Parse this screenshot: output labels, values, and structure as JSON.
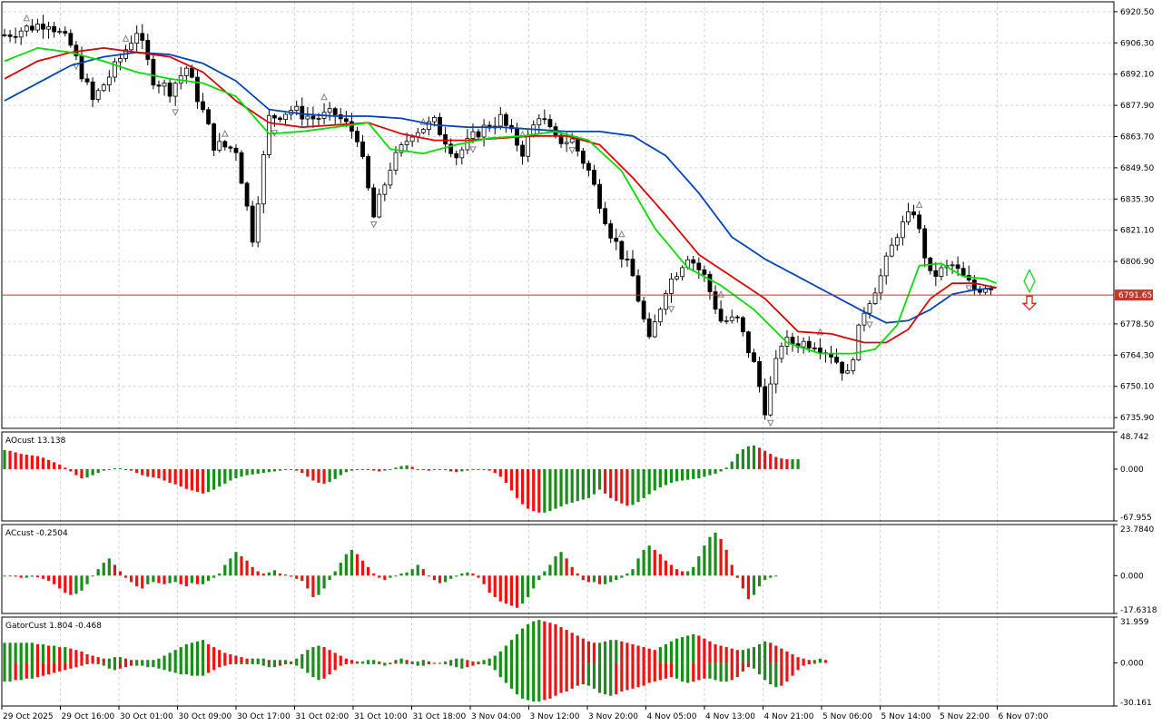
{
  "colors": {
    "background": "#ffffff",
    "grid": "#d3d3d3",
    "bull_candle": "#ffffff",
    "bear_candle": "#000000",
    "ma_green": "#00dd00",
    "ma_red": "#dd0000",
    "ma_blue": "#0044bb",
    "fractal": "#808080",
    "price_line": "#c0392b",
    "bar_up": "#1a8c1a",
    "bar_down": "#ee1111",
    "signal_buy": "#22cc22",
    "signal_sell": "#dd2222"
  },
  "panels": {
    "ao": {
      "label": "AOcust 13.138"
    },
    "ac": {
      "label": "ACcust -0.2504"
    },
    "gator": {
      "label": "GatorCust 1.804 -0.468"
    }
  },
  "chart_data": [
    {
      "type": "candlestick",
      "title": "",
      "current_price": "6791.65",
      "price_ticks": [
        "6920.50",
        "6906.30",
        "6892.10",
        "6877.90",
        "6863.70",
        "6849.50",
        "6835.30",
        "6821.10",
        "6806.90",
        "6791.65",
        "6778.50",
        "6764.30",
        "6750.10",
        "6735.90"
      ],
      "ylim": [
        6731,
        6925
      ],
      "time_labels": [
        "29 Oct 2025",
        "29 Oct 16:00",
        "30 Oct 01:00",
        "30 Oct 09:00",
        "30 Oct 17:00",
        "31 Oct 02:00",
        "31 Oct 10:00",
        "31 Oct 18:00",
        "3 Nov 04:00",
        "3 Nov 12:00",
        "3 Nov 20:00",
        "4 Nov 05:00",
        "4 Nov 13:00",
        "4 Nov 21:00",
        "5 Nov 06:00",
        "5 Nov 14:00",
        "5 Nov 22:00",
        "6 Nov 07:00"
      ],
      "anchors": [
        [
          0,
          6910
        ],
        [
          8,
          6916
        ],
        [
          12,
          6905
        ],
        [
          16,
          6880
        ],
        [
          20,
          6895
        ],
        [
          24,
          6912
        ],
        [
          27,
          6890
        ],
        [
          30,
          6885
        ],
        [
          33,
          6895
        ],
        [
          36,
          6875
        ],
        [
          38,
          6860
        ],
        [
          42,
          6858
        ],
        [
          45,
          6818
        ],
        [
          48,
          6872
        ],
        [
          52,
          6876
        ],
        [
          56,
          6872
        ],
        [
          60,
          6874
        ],
        [
          64,
          6864
        ],
        [
          67,
          6827
        ],
        [
          70,
          6850
        ],
        [
          74,
          6866
        ],
        [
          78,
          6870
        ],
        [
          82,
          6855
        ],
        [
          86,
          6866
        ],
        [
          90,
          6872
        ],
        [
          94,
          6857
        ],
        [
          97,
          6874
        ],
        [
          100,
          6862
        ],
        [
          103,
          6862
        ],
        [
          106,
          6848
        ],
        [
          110,
          6820
        ],
        [
          114,
          6800
        ],
        [
          117,
          6770
        ],
        [
          120,
          6795
        ],
        [
          124,
          6810
        ],
        [
          127,
          6800
        ],
        [
          130,
          6780
        ],
        [
          133,
          6780
        ],
        [
          136,
          6760
        ],
        [
          138,
          6740
        ],
        [
          141,
          6770
        ],
        [
          144,
          6770
        ],
        [
          147,
          6770
        ],
        [
          150,
          6765
        ],
        [
          153,
          6755
        ],
        [
          156,
          6785
        ],
        [
          159,
          6800
        ],
        [
          162,
          6820
        ],
        [
          165,
          6830
        ],
        [
          168,
          6800
        ],
        [
          172,
          6805
        ],
        [
          176,
          6794
        ],
        [
          178,
          6796
        ]
      ],
      "ma_green": [
        [
          0,
          6898
        ],
        [
          6,
          6904
        ],
        [
          12,
          6902
        ],
        [
          18,
          6898
        ],
        [
          24,
          6893
        ],
        [
          30,
          6890
        ],
        [
          36,
          6888
        ],
        [
          42,
          6882
        ],
        [
          48,
          6865
        ],
        [
          54,
          6866
        ],
        [
          60,
          6868
        ],
        [
          66,
          6870
        ],
        [
          70,
          6858
        ],
        [
          76,
          6856
        ],
        [
          82,
          6860
        ],
        [
          88,
          6863
        ],
        [
          94,
          6864
        ],
        [
          100,
          6866
        ],
        [
          106,
          6862
        ],
        [
          112,
          6848
        ],
        [
          118,
          6822
        ],
        [
          124,
          6804
        ],
        [
          130,
          6796
        ],
        [
          136,
          6785
        ],
        [
          142,
          6770
        ],
        [
          148,
          6765
        ],
        [
          154,
          6765
        ],
        [
          158,
          6767
        ],
        [
          162,
          6778
        ],
        [
          166,
          6805
        ],
        [
          170,
          6806
        ],
        [
          174,
          6800
        ],
        [
          178,
          6799
        ],
        [
          180,
          6797
        ]
      ],
      "ma_red": [
        [
          0,
          6890
        ],
        [
          6,
          6898
        ],
        [
          12,
          6902
        ],
        [
          18,
          6904
        ],
        [
          24,
          6902
        ],
        [
          30,
          6900
        ],
        [
          36,
          6893
        ],
        [
          42,
          6880
        ],
        [
          48,
          6870
        ],
        [
          54,
          6868
        ],
        [
          60,
          6869
        ],
        [
          66,
          6870
        ],
        [
          72,
          6865
        ],
        [
          78,
          6862
        ],
        [
          84,
          6862
        ],
        [
          90,
          6863
        ],
        [
          96,
          6864
        ],
        [
          102,
          6864
        ],
        [
          108,
          6860
        ],
        [
          114,
          6845
        ],
        [
          120,
          6828
        ],
        [
          126,
          6810
        ],
        [
          132,
          6800
        ],
        [
          138,
          6790
        ],
        [
          144,
          6775
        ],
        [
          150,
          6774
        ],
        [
          156,
          6770
        ],
        [
          160,
          6770
        ],
        [
          164,
          6776
        ],
        [
          168,
          6790
        ],
        [
          172,
          6797
        ],
        [
          176,
          6797
        ],
        [
          180,
          6795
        ]
      ],
      "ma_blue": [
        [
          0,
          6880
        ],
        [
          6,
          6888
        ],
        [
          12,
          6896
        ],
        [
          18,
          6900
        ],
        [
          24,
          6902
        ],
        [
          30,
          6901
        ],
        [
          36,
          6897
        ],
        [
          42,
          6889
        ],
        [
          48,
          6876
        ],
        [
          54,
          6874
        ],
        [
          60,
          6873
        ],
        [
          66,
          6873
        ],
        [
          72,
          6872
        ],
        [
          78,
          6869
        ],
        [
          84,
          6868
        ],
        [
          90,
          6868
        ],
        [
          96,
          6867
        ],
        [
          102,
          6866
        ],
        [
          108,
          6866
        ],
        [
          114,
          6864
        ],
        [
          120,
          6855
        ],
        [
          126,
          6838
        ],
        [
          132,
          6818
        ],
        [
          138,
          6808
        ],
        [
          144,
          6800
        ],
        [
          150,
          6792
        ],
        [
          156,
          6784
        ],
        [
          160,
          6779
        ],
        [
          164,
          6780
        ],
        [
          168,
          6785
        ],
        [
          172,
          6792
        ],
        [
          176,
          6794
        ],
        [
          180,
          6795
        ]
      ]
    },
    {
      "type": "bar",
      "title": "AOcust 13.138",
      "ticks": [
        "48.742",
        "0.000",
        "-67.955"
      ],
      "ylim": [
        -67.955,
        48.742
      ],
      "values": [
        25,
        24,
        22,
        20,
        19,
        18,
        17,
        15,
        12,
        9,
        6,
        2,
        -3,
        -8,
        -12,
        -11,
        -8,
        -5,
        -2,
        0,
        1,
        1,
        0,
        -2,
        -5,
        -8,
        -10,
        -11,
        -12,
        -15,
        -18,
        -20,
        -23,
        -26,
        -28,
        -30,
        -32,
        -30,
        -27,
        -23,
        -19,
        -15,
        -12,
        -10,
        -8,
        -7,
        -6,
        -5,
        -4,
        -3,
        -2,
        -1,
        0,
        -2,
        -5,
        -10,
        -15,
        -18,
        -19,
        -17,
        -13,
        -8,
        -4,
        -2,
        -1,
        0,
        -1,
        -2,
        -3,
        -2,
        0,
        2,
        4,
        5,
        3,
        0,
        -1,
        -2,
        -1,
        0,
        -1,
        -3,
        -4,
        -3,
        -2,
        -1,
        0,
        -1,
        -2,
        -5,
        -10,
        -18,
        -28,
        -38,
        -46,
        -52,
        -55,
        -57,
        -57,
        -55,
        -52,
        -49,
        -46,
        -44,
        -42,
        -40,
        -38,
        -33,
        -27,
        -32,
        -38,
        -42,
        -45,
        -48,
        -47,
        -43,
        -38,
        -33,
        -28,
        -24,
        -21,
        -18,
        -16,
        -15,
        -14,
        -13,
        -12,
        -10,
        -8,
        -6,
        -3,
        2,
        10,
        20,
        26,
        30,
        31,
        28,
        24,
        20,
        16,
        14,
        13,
        13,
        13
      ]
    },
    {
      "type": "bar",
      "title": "ACcust -0.2504",
      "ticks": [
        "23.7840",
        "0.000",
        "-17.6318"
      ],
      "ylim": [
        -17.6318,
        23.784
      ],
      "values": [
        0,
        0,
        -0.5,
        -1,
        -1,
        -0.5,
        -0.8,
        -1.5,
        -2.5,
        -4,
        -6,
        -8,
        -9,
        -8.5,
        -7,
        -4,
        0,
        3,
        6,
        8,
        5,
        2,
        -1,
        -3,
        -5,
        -6,
        -4,
        -3,
        -3.5,
        -4,
        -3.5,
        -3,
        -4,
        -5,
        -3.5,
        -4,
        -4,
        -2.5,
        -1,
        1,
        5,
        8,
        11,
        9,
        7,
        4,
        2,
        1,
        1.5,
        2.5,
        1,
        0.5,
        -0.5,
        -1.5,
        -2.5,
        -6,
        -10,
        -9,
        -6,
        -2,
        2,
        6,
        10,
        12,
        10,
        7,
        4,
        1,
        -1,
        -2,
        -1,
        0,
        1,
        1.5,
        3,
        5,
        3,
        0,
        -2,
        -3.5,
        -3,
        -1.5,
        -0.5,
        1,
        1.5,
        1,
        -1,
        -4,
        -8,
        -10,
        -12,
        -13,
        -14,
        -15,
        -13,
        -10,
        -6,
        -2,
        2,
        5,
        9,
        11,
        8,
        4,
        1,
        -2,
        -3,
        -3,
        -4,
        -4,
        -3,
        -2,
        -1,
        1,
        3,
        8,
        12,
        14,
        12,
        10,
        7,
        5,
        3,
        2,
        2,
        4,
        9,
        14,
        18,
        20,
        17,
        12,
        5,
        -1,
        -6,
        -11,
        -9,
        -5,
        -2,
        -1,
        0
      ]
    },
    {
      "type": "bar",
      "title": "GatorCust 1.804 -0.468",
      "ticks": [
        "31.959",
        "0.000",
        "-30.161"
      ],
      "ylim": [
        -30.161,
        31.959
      ],
      "series": [
        {
          "values": [
            14,
            14,
            14,
            14,
            14,
            14,
            13,
            13,
            12,
            12,
            11,
            11,
            10,
            9,
            8,
            6,
            5,
            4,
            3,
            3,
            4,
            4,
            3,
            2,
            2,
            2,
            2,
            2,
            3,
            5,
            7,
            9,
            11,
            13,
            14,
            15,
            16,
            13,
            11,
            9,
            7,
            6,
            5,
            4,
            3,
            3,
            3,
            3,
            2,
            2,
            2,
            2,
            1,
            3,
            6,
            9,
            11,
            12,
            11,
            9,
            7,
            5,
            3,
            2,
            1,
            1,
            2,
            2,
            1,
            0,
            0,
            2,
            3,
            2,
            1,
            1,
            2,
            1,
            0,
            0,
            1,
            2,
            3,
            3,
            2,
            1,
            1,
            2,
            3,
            5,
            8,
            12,
            16,
            20,
            24,
            27,
            29,
            30,
            29,
            28,
            27,
            25,
            23,
            21,
            19,
            17,
            15,
            14,
            14,
            15,
            16,
            16,
            15,
            14,
            13,
            12,
            11,
            10,
            9,
            11,
            13,
            15,
            17,
            18,
            19,
            20,
            19,
            17,
            15,
            13,
            12,
            11,
            10,
            9,
            9,
            10,
            11,
            13,
            15,
            14,
            12,
            10,
            8,
            6,
            4,
            3,
            2,
            2,
            3,
            2
          ]
        },
        {
          "values": [
            -13,
            -13,
            -12,
            -12,
            -11,
            -11,
            -10,
            -9,
            -8,
            -7,
            -6,
            -5,
            -4,
            -3,
            -2,
            -1,
            0,
            -1,
            -2,
            -4,
            -5,
            -4,
            -3,
            -2,
            -2,
            -2,
            -3,
            -3,
            -4,
            -5,
            -6,
            -7,
            -8,
            -8,
            -9,
            -9,
            -9,
            -7,
            -5,
            -3,
            -2,
            -1,
            -1,
            -1,
            -1,
            -1,
            -1,
            -2,
            -3,
            -3,
            -2,
            -1,
            -1,
            -2,
            -4,
            -7,
            -10,
            -12,
            -11,
            -8,
            -5,
            -2,
            -1,
            0,
            0,
            0,
            -1,
            -1,
            -1,
            -2,
            -1,
            0,
            0,
            -1,
            -1,
            -2,
            -2,
            -1,
            0,
            0,
            -1,
            -2,
            -3,
            -4,
            -3,
            -2,
            -1,
            -1,
            -2,
            -5,
            -10,
            -14,
            -18,
            -22,
            -25,
            -26,
            -27,
            -27,
            -26,
            -25,
            -23,
            -21,
            -20,
            -18,
            -16,
            -15,
            -16,
            -18,
            -21,
            -22,
            -23,
            -22,
            -20,
            -19,
            -18,
            -17,
            -16,
            -14,
            -13,
            -12,
            -11,
            -10,
            -11,
            -13,
            -14,
            -13,
            -12,
            -11,
            -11,
            -12,
            -13,
            -13,
            -12,
            -10,
            -6,
            -3,
            -4,
            -8,
            -12,
            -15,
            -17,
            -16,
            -13,
            -9,
            -5,
            -2,
            -1,
            0
          ]
        }
      ]
    }
  ]
}
